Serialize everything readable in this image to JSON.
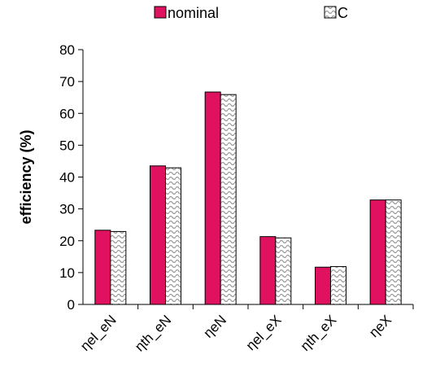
{
  "chart_data": {
    "type": "bar",
    "title": "",
    "xlabel": "",
    "ylabel": "efficiency (%)",
    "ylim": [
      0,
      80
    ],
    "yticks": [
      0,
      10,
      20,
      30,
      40,
      50,
      60,
      70,
      80
    ],
    "grid": false,
    "legend_position": "top",
    "categories": [
      "ηel_eN",
      "ηth_eN",
      "ηeN",
      "ηel_eX",
      "ηth_eX",
      "ηeX"
    ],
    "series": [
      {
        "name": "nominal",
        "values": [
          23.3,
          43.5,
          66.7,
          21.3,
          11.7,
          32.8
        ],
        "color": "#e0125f",
        "pattern": "solid"
      },
      {
        "name": "C",
        "values": [
          22.9,
          42.9,
          65.9,
          20.9,
          11.9,
          32.8
        ],
        "color": "#bfbfbf",
        "pattern": "wave-hatch"
      }
    ]
  }
}
